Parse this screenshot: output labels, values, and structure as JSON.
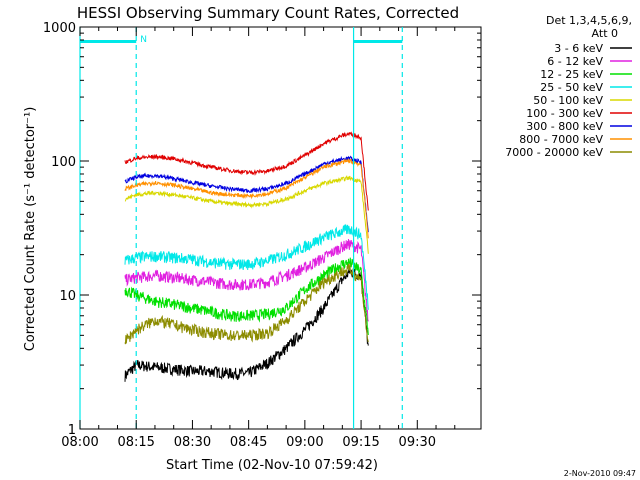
{
  "chart_data": {
    "type": "line",
    "title": "HESSI Observing Summary Count Rates, Corrected",
    "ylabel": "Corrected Count Rate (s⁻¹ detector⁻¹)",
    "xlabel": "Start Time (02-Nov-10 07:59:42)",
    "footer": "2-Nov-2010 09:47",
    "y_scale": "log",
    "ylim": [
      1,
      1000
    ],
    "y_ticks": [
      "1",
      "10",
      "100",
      "1000"
    ],
    "x_ticks": [
      "08:00",
      "08:15",
      "08:30",
      "08:45",
      "09:00",
      "09:15",
      "09:30"
    ],
    "x_tick_minutes": [
      0,
      15,
      30,
      45,
      60,
      75,
      90
    ],
    "xlim_minutes": [
      0,
      107
    ],
    "grid": false,
    "legend_header": [
      "Det 1,3,4,5,6,9,",
      "Att 0"
    ],
    "legend_placement": "right",
    "annotations": {
      "attenuator_marker": "N",
      "bar_level": 780,
      "bar_segments_minutes": [
        [
          0,
          15
        ],
        [
          73,
          86
        ]
      ],
      "vlines_solid_minutes": [
        0,
        73
      ],
      "vlines_dashed_minutes": [
        15,
        86
      ]
    },
    "x_minutes": [
      12,
      15,
      20,
      25,
      30,
      35,
      40,
      45,
      50,
      55,
      60,
      65,
      70,
      72,
      75,
      77
    ],
    "series": [
      {
        "name": "3 - 6 keV",
        "color": "#000000",
        "values": [
          2.5,
          3.0,
          2.9,
          2.8,
          2.7,
          2.7,
          2.6,
          2.6,
          3.1,
          4.0,
          5.5,
          8.0,
          13.0,
          15.0,
          14.0,
          3.8
        ]
      },
      {
        "name": "6 - 12 keV",
        "color": "#e020e0",
        "values": [
          13,
          13.5,
          14,
          13.5,
          13,
          12.5,
          12,
          12,
          12.5,
          14,
          16,
          19,
          23,
          24,
          22,
          6
        ]
      },
      {
        "name": "12 - 25 keV",
        "color": "#00e000",
        "values": [
          11,
          10,
          9,
          8.5,
          8,
          7.5,
          7,
          7,
          7.2,
          8,
          11,
          14,
          17,
          17.5,
          15,
          5
        ]
      },
      {
        "name": "25 - 50 keV",
        "color": "#00e8e8",
        "values": [
          18,
          19,
          19.5,
          19,
          18.5,
          17.5,
          17,
          17,
          18,
          20,
          23,
          27,
          30,
          31,
          28,
          8
        ]
      },
      {
        "name": "50 - 100 keV",
        "color": "#d8d800",
        "values": [
          52,
          56,
          58,
          56,
          53,
          50,
          48,
          47,
          48,
          52,
          60,
          68,
          73,
          75,
          70,
          20
        ]
      },
      {
        "name": "100 - 300 keV",
        "color": "#e00000",
        "values": [
          98,
          105,
          108,
          104,
          97,
          90,
          85,
          82,
          84,
          92,
          110,
          135,
          155,
          160,
          150,
          40
        ]
      },
      {
        "name": "300 - 800 keV",
        "color": "#0000e0",
        "values": [
          70,
          76,
          78,
          74,
          69,
          65,
          62,
          60,
          62,
          68,
          80,
          95,
          103,
          105,
          98,
          28
        ]
      },
      {
        "name": "800 - 7000 keV",
        "color": "#ff9000",
        "values": [
          62,
          66,
          69,
          66,
          62,
          58,
          56,
          55,
          57,
          63,
          75,
          90,
          98,
          100,
          94,
          26
        ]
      },
      {
        "name": "7000 - 20000 keV",
        "color": "#8c8c00",
        "values": [
          4.5,
          5.5,
          6.5,
          6.0,
          5.5,
          5.2,
          5.0,
          5.0,
          5.2,
          6.5,
          9.0,
          12.5,
          15.0,
          15.5,
          13.0,
          4.0
        ]
      }
    ]
  }
}
